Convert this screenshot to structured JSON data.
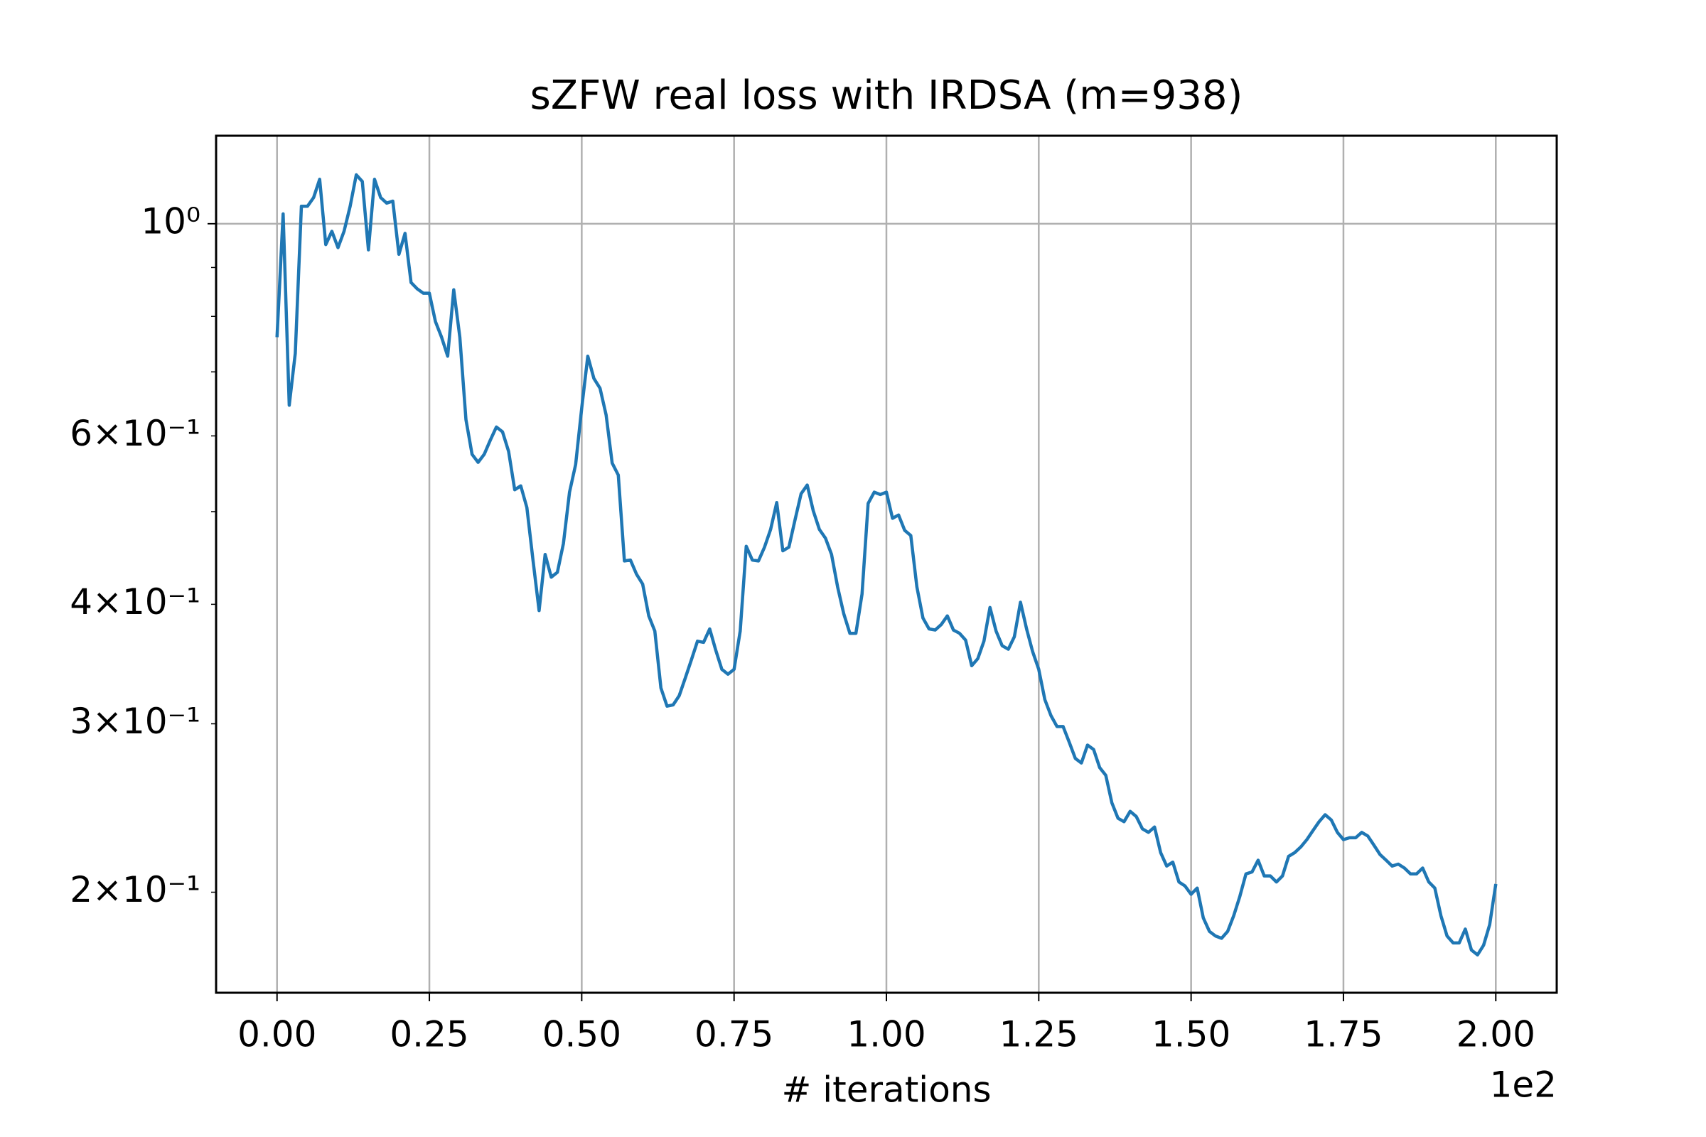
{
  "chart_data": {
    "type": "line",
    "title": "sZFW real loss with IRDSA (m=938)",
    "xlabel": "# iterations",
    "x_offset_label": "1e2",
    "color": "#1f77b4",
    "grid": true,
    "yscale": "log",
    "xlim": [
      -10,
      210
    ],
    "ylim": [
      0.157,
      1.236
    ],
    "xticks": [
      {
        "value": 0,
        "label": "0.00"
      },
      {
        "value": 25,
        "label": "0.25"
      },
      {
        "value": 50,
        "label": "0.50"
      },
      {
        "value": 75,
        "label": "0.75"
      },
      {
        "value": 100,
        "label": "1.00"
      },
      {
        "value": 125,
        "label": "1.25"
      },
      {
        "value": 150,
        "label": "1.50"
      },
      {
        "value": 175,
        "label": "1.75"
      },
      {
        "value": 200,
        "label": "2.00"
      }
    ],
    "yticks": [
      {
        "value": 1,
        "label": "10⁰"
      }
    ],
    "yminorticks": [
      {
        "value": 0.2,
        "label": "2×10⁻¹"
      },
      {
        "value": 0.3,
        "label": "3×10⁻¹"
      },
      {
        "value": 0.4,
        "label": "4×10⁻¹"
      },
      0.5,
      {
        "value": 0.6,
        "label": "6×10⁻¹"
      },
      0.7,
      0.8,
      0.9
    ],
    "x": [
      0,
      1,
      2,
      3,
      4,
      5,
      6,
      7,
      8,
      9,
      10,
      11,
      12,
      13,
      14,
      15,
      16,
      17,
      18,
      19,
      20,
      21,
      22,
      23,
      24,
      25,
      26,
      27,
      28,
      29,
      30,
      31,
      32,
      33,
      34,
      35,
      36,
      37,
      38,
      39,
      40,
      41,
      42,
      43,
      44,
      45,
      46,
      47,
      48,
      49,
      50,
      51,
      52,
      53,
      54,
      55,
      56,
      57,
      58,
      59,
      60,
      61,
      62,
      63,
      64,
      65,
      66,
      67,
      68,
      69,
      70,
      71,
      72,
      73,
      74,
      75,
      76,
      77,
      78,
      79,
      80,
      81,
      82,
      83,
      84,
      85,
      86,
      87,
      88,
      89,
      90,
      91,
      92,
      93,
      94,
      95,
      96,
      97,
      98,
      99,
      100,
      101,
      102,
      103,
      104,
      105,
      106,
      107,
      108,
      109,
      110,
      111,
      112,
      113,
      114,
      115,
      116,
      117,
      118,
      119,
      120,
      121,
      122,
      123,
      124,
      125,
      126,
      127,
      128,
      129,
      130,
      131,
      132,
      133,
      134,
      135,
      136,
      137,
      138,
      139,
      140,
      141,
      142,
      143,
      144,
      145,
      146,
      147,
      148,
      149,
      150,
      151,
      152,
      153,
      154,
      155,
      156,
      157,
      158,
      159,
      160,
      161,
      162,
      163,
      164,
      165,
      166,
      167,
      168,
      169,
      170,
      171,
      172,
      173,
      174,
      175,
      176,
      177,
      178,
      179,
      180,
      181,
      182,
      183,
      184,
      185,
      186,
      187,
      188,
      189,
      190,
      191,
      192,
      193,
      194,
      195,
      196,
      197,
      198,
      199,
      200
    ],
    "values": [
      0.761,
      1.024,
      0.646,
      0.732,
      1.043,
      1.043,
      1.065,
      1.113,
      0.951,
      0.982,
      0.944,
      0.982,
      1.043,
      1.125,
      1.107,
      0.939,
      1.113,
      1.065,
      1.051,
      1.056,
      0.929,
      0.977,
      0.868,
      0.855,
      0.846,
      0.846,
      0.79,
      0.761,
      0.727,
      0.853,
      0.761,
      0.624,
      0.574,
      0.563,
      0.574,
      0.594,
      0.613,
      0.606,
      0.578,
      0.527,
      0.532,
      0.505,
      0.445,
      0.394,
      0.451,
      0.427,
      0.432,
      0.463,
      0.524,
      0.56,
      0.642,
      0.727,
      0.689,
      0.673,
      0.631,
      0.562,
      0.546,
      0.444,
      0.445,
      0.43,
      0.42,
      0.389,
      0.375,
      0.327,
      0.313,
      0.314,
      0.321,
      0.335,
      0.35,
      0.366,
      0.365,
      0.377,
      0.358,
      0.342,
      0.338,
      0.342,
      0.375,
      0.46,
      0.445,
      0.444,
      0.459,
      0.479,
      0.511,
      0.455,
      0.459,
      0.49,
      0.522,
      0.533,
      0.501,
      0.479,
      0.469,
      0.451,
      0.417,
      0.391,
      0.373,
      0.373,
      0.41,
      0.51,
      0.524,
      0.521,
      0.524,
      0.492,
      0.496,
      0.478,
      0.472,
      0.417,
      0.387,
      0.377,
      0.376,
      0.381,
      0.389,
      0.376,
      0.373,
      0.367,
      0.345,
      0.351,
      0.366,
      0.397,
      0.375,
      0.362,
      0.359,
      0.37,
      0.402,
      0.377,
      0.357,
      0.342,
      0.318,
      0.306,
      0.298,
      0.298,
      0.287,
      0.276,
      0.273,
      0.285,
      0.282,
      0.27,
      0.265,
      0.248,
      0.239,
      0.237,
      0.243,
      0.24,
      0.233,
      0.231,
      0.234,
      0.22,
      0.213,
      0.215,
      0.205,
      0.203,
      0.199,
      0.202,
      0.188,
      0.182,
      0.18,
      0.179,
      0.182,
      0.189,
      0.198,
      0.209,
      0.21,
      0.216,
      0.208,
      0.208,
      0.205,
      0.208,
      0.218,
      0.22,
      0.223,
      0.227,
      0.232,
      0.237,
      0.241,
      0.238,
      0.231,
      0.227,
      0.228,
      0.228,
      0.231,
      0.229,
      0.224,
      0.219,
      0.216,
      0.213,
      0.214,
      0.212,
      0.209,
      0.209,
      0.212,
      0.205,
      0.202,
      0.189,
      0.18,
      0.177,
      0.177,
      0.183,
      0.174,
      0.172,
      0.176,
      0.185,
      0.204
    ]
  }
}
